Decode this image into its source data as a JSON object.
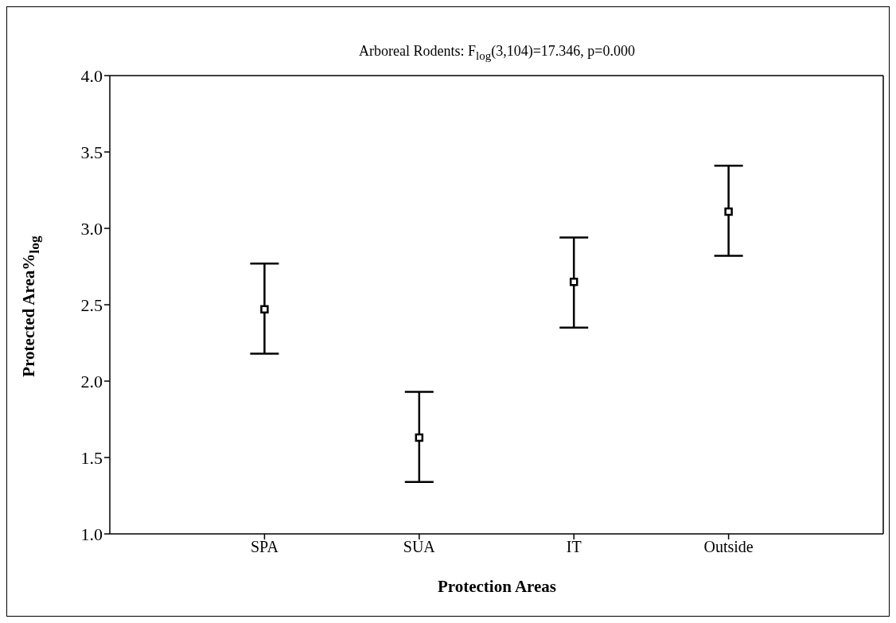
{
  "chart_data": {
    "type": "scatter",
    "title": "Arboreal Rodents: F$_{log}$(3,104)=17.346, p=0.000",
    "xlabel": "Protection Areas",
    "ylabel": "Protected Area%$_{log}$",
    "categories": [
      "SPA",
      "SUA",
      "IT",
      "Outside"
    ],
    "values": [
      2.47,
      1.63,
      2.65,
      3.11
    ],
    "errors": [
      [
        2.18,
        2.77
      ],
      [
        1.34,
        1.93
      ],
      [
        2.35,
        2.94
      ],
      [
        2.82,
        3.41
      ]
    ],
    "color": "#000000",
    "marker": "square",
    "ylim": [
      1.0,
      4.0
    ],
    "yticks": [
      {
        "value": 1.0,
        "label": "1.0"
      },
      {
        "value": 1.5,
        "label": "1.5"
      },
      {
        "value": 2.0,
        "label": "2.0"
      },
      {
        "value": 2.5,
        "label": "2.5"
      },
      {
        "value": 3.0,
        "label": "3.0"
      },
      {
        "value": 3.5,
        "label": "3.5"
      },
      {
        "value": 4.0,
        "label": "4.0"
      }
    ],
    "grid": false,
    "legend": false
  }
}
